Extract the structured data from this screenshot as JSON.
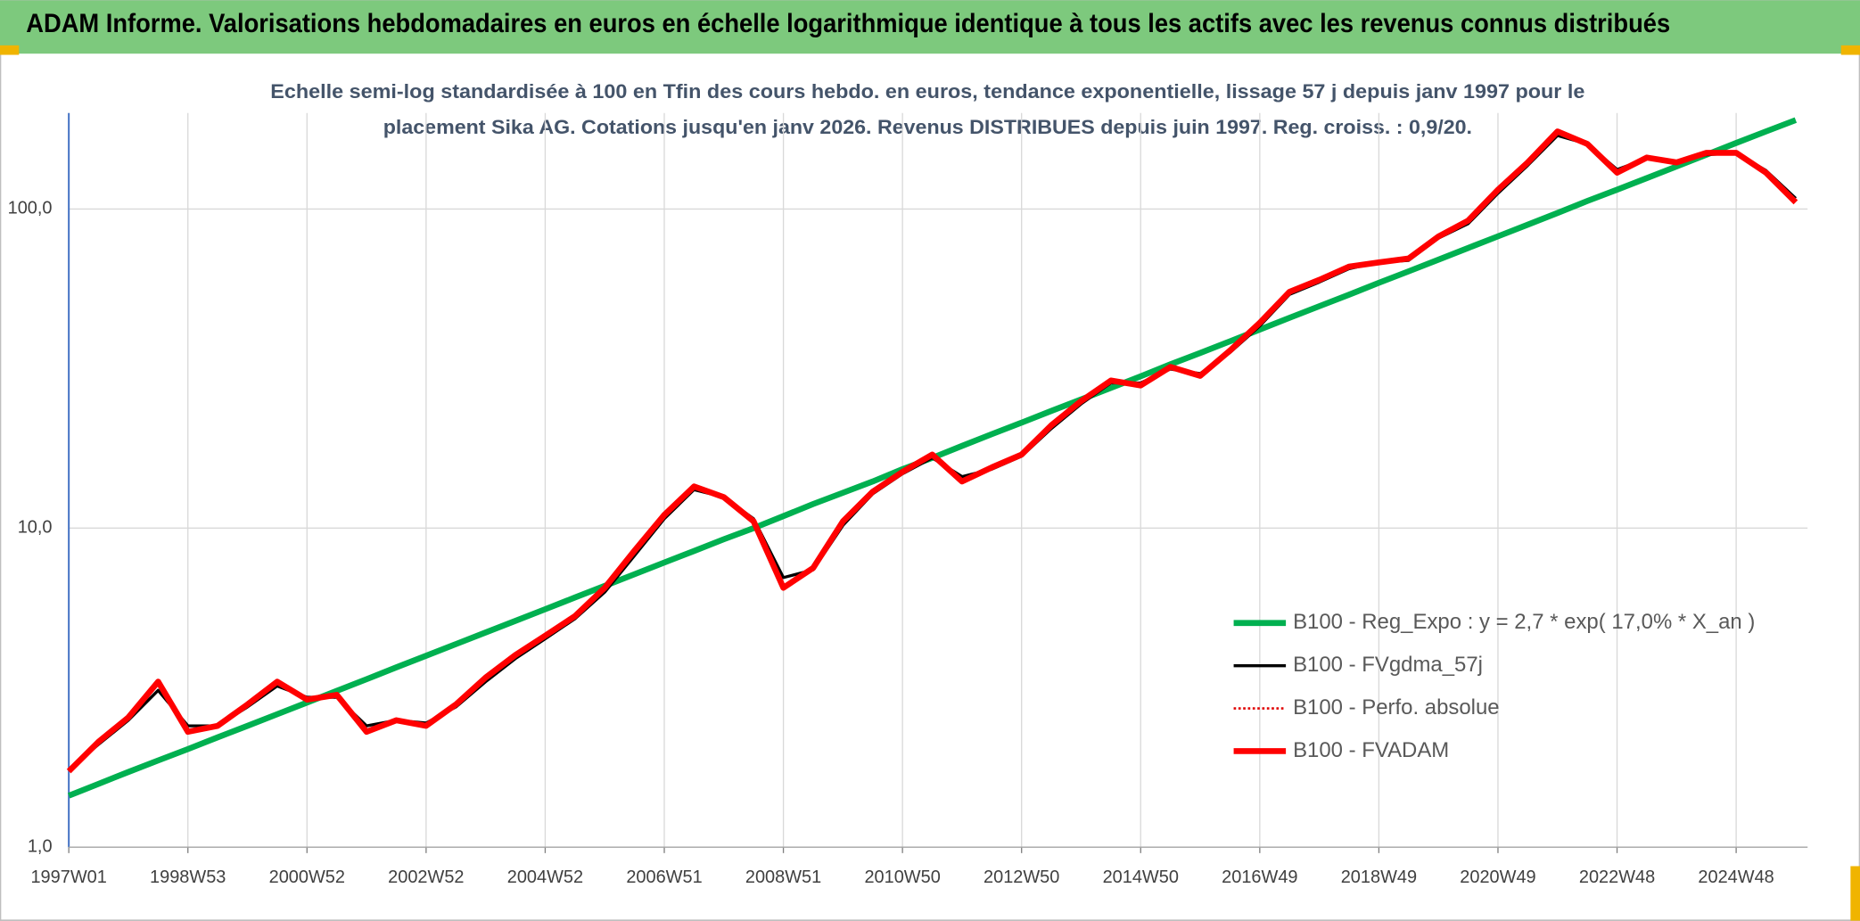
{
  "chart_data": {
    "type": "line",
    "title": "ADAM Informe. Valorisations hebdomadaires en euros en échelle logarithmique identique à tous les actifs avec les revenus connus distribués",
    "subtitle": [
      "Echelle semi-log standardisée à 100 en Tfin des cours hebdo. en euros, tendance exponentielle, lissage 57 j depuis janv 1997 pour le",
      "placement Sika AG. Cotations jusqu'en janv 2026. Revenus DISTRIBUES depuis juin 1997. Reg. croiss. : 0,9/20."
    ],
    "categories": [
      "1997W01",
      null,
      null,
      null,
      "1998W53",
      null,
      null,
      null,
      "2000W52",
      null,
      null,
      null,
      "2002W52",
      null,
      null,
      null,
      "2004W52",
      null,
      null,
      null,
      "2006W51",
      null,
      null,
      null,
      "2008W51",
      null,
      null,
      null,
      "2010W50",
      null,
      null,
      null,
      "2012W50",
      null,
      null,
      null,
      "2014W50",
      null,
      null,
      null,
      "2016W49",
      null,
      null,
      null,
      "2018W49",
      null,
      null,
      null,
      "2020W49",
      null,
      null,
      null,
      "2022W48",
      null,
      null,
      null,
      "2024W48",
      null,
      null
    ],
    "series": [
      {
        "name": "B100 - Reg_Expo : y = 2,7 * exp( 17,0% *  X_an )",
        "color": "#00b050",
        "width": 5,
        "values": [
          1.45,
          1.58,
          1.72,
          1.87,
          2.03,
          2.21,
          2.4,
          2.61,
          2.84,
          3.09,
          3.36,
          3.66,
          3.98,
          4.33,
          4.71,
          5.12,
          5.57,
          6.06,
          6.59,
          7.17,
          7.8,
          8.48,
          9.23,
          10.0,
          10.9,
          11.9,
          12.9,
          14.0,
          15.3,
          16.6,
          18.1,
          19.7,
          21.4,
          23.3,
          25.3,
          27.5,
          29.9,
          32.6,
          35.4,
          38.5,
          41.9,
          45.6,
          49.6,
          53.9,
          58.7,
          63.8,
          69.4,
          75.5,
          82.1,
          89.3,
          97.2,
          106,
          115,
          125,
          136,
          148,
          161,
          175,
          190
        ]
      },
      {
        "name": "B100 - FVgdma_57j",
        "color": "#000000",
        "width": 2.5,
        "values": [
          1.75,
          2.1,
          2.5,
          3.1,
          2.4,
          2.4,
          2.75,
          3.2,
          2.95,
          2.95,
          2.4,
          2.5,
          2.45,
          2.75,
          3.3,
          3.9,
          4.5,
          5.2,
          6.3,
          8.2,
          10.7,
          13.2,
          12.5,
          10.7,
          7.0,
          7.4,
          10.2,
          12.8,
          14.8,
          16.6,
          14.5,
          15.3,
          16.8,
          20.5,
          24.5,
          28.5,
          28.5,
          31.5,
          30.5,
          35.5,
          43,
          54,
          59,
          65,
          68,
          69,
          81,
          90,
          112,
          137,
          170,
          160,
          133,
          144,
          141,
          148,
          150,
          132,
          108
        ]
      },
      {
        "name": "B100 - Perfo. absolue",
        "color": "#e00000",
        "width": 2,
        "style": "dotted",
        "values": [
          1.73,
          2.14,
          2.55,
          3.3,
          2.3,
          2.4,
          2.8,
          3.3,
          2.9,
          3.0,
          2.3,
          2.5,
          2.4,
          2.8,
          3.4,
          4.0,
          4.6,
          5.3,
          6.5,
          8.5,
          11,
          13.5,
          12.5,
          10.5,
          6.5,
          7.5,
          10.5,
          13,
          15,
          17,
          14,
          15.5,
          17,
          21,
          25,
          29,
          28,
          32,
          30,
          36,
          44,
          55,
          60,
          66,
          68,
          70,
          82,
          92,
          115,
          140,
          175,
          160,
          130,
          145,
          140,
          150,
          150,
          130,
          105
        ]
      },
      {
        "name": "B100 - FVADAM",
        "color": "#ff0000",
        "width": 5,
        "values": [
          1.73,
          2.14,
          2.55,
          3.3,
          2.3,
          2.4,
          2.8,
          3.3,
          2.9,
          3.0,
          2.3,
          2.5,
          2.4,
          2.8,
          3.4,
          4.0,
          4.6,
          5.3,
          6.5,
          8.5,
          11,
          13.5,
          12.5,
          10.5,
          6.5,
          7.5,
          10.5,
          13,
          15,
          17,
          14,
          15.5,
          17,
          21,
          25,
          29,
          28,
          32,
          30,
          36,
          44,
          55,
          60,
          66,
          68,
          70,
          82,
          92,
          115,
          140,
          175,
          160,
          130,
          145,
          140,
          150,
          150,
          130,
          105
        ]
      }
    ],
    "log_scale": true,
    "grid": true,
    "ylim": [
      1,
      200
    ],
    "yticks": [
      {
        "value": 1,
        "label": "1,0"
      },
      {
        "value": 10,
        "label": "10,0"
      },
      {
        "value": 100,
        "label": "100,0"
      }
    ],
    "legend": "lower right"
  }
}
